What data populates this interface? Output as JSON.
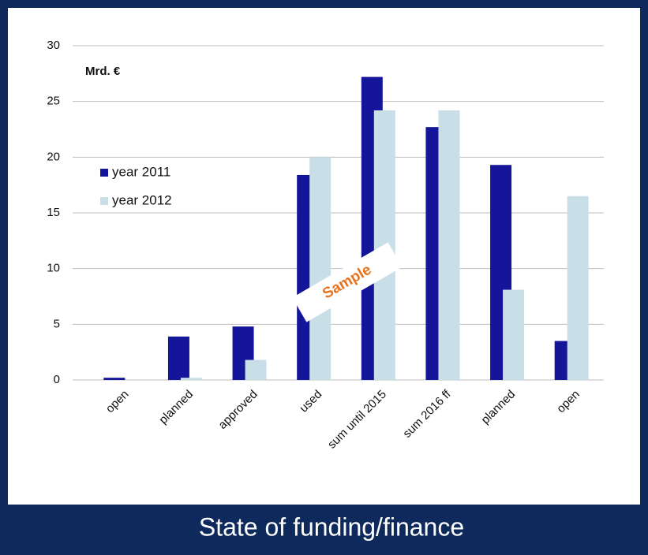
{
  "chart_data": {
    "type": "bar",
    "title": "State of funding/finance",
    "annotations": [
      "Mrd. €",
      "Sample"
    ],
    "categories": [
      "open",
      "planned",
      "approved",
      "used",
      "sum until 2015",
      "sum 2016 ff",
      "planned",
      "open"
    ],
    "series": [
      {
        "name": "year 2011",
        "color": "#15159a",
        "values": [
          0.2,
          3.9,
          4.8,
          18.4,
          27.2,
          22.7,
          19.3,
          3.5
        ]
      },
      {
        "name": "year 2012",
        "color": "#c8dfe8",
        "values": [
          0,
          0.2,
          1.8,
          20,
          24.2,
          24.2,
          8.1,
          16.5
        ]
      }
    ],
    "ylim": [
      0,
      30
    ],
    "yticks": [
      0,
      5,
      10,
      15,
      20,
      25,
      30
    ],
    "grid": true,
    "legend": "left"
  }
}
